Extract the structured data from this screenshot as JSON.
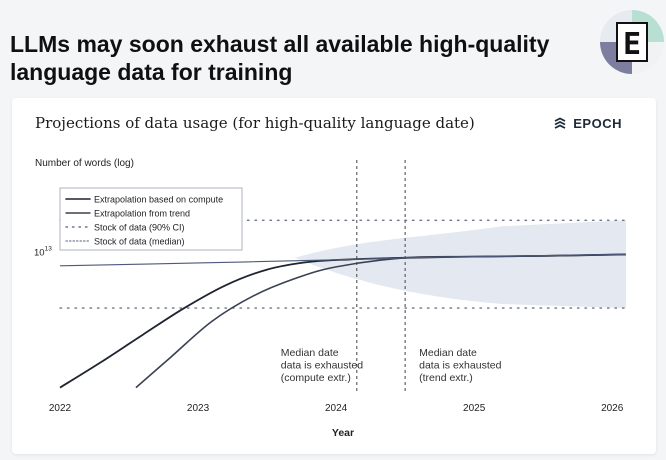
{
  "page": {
    "headline": "LLMs may soon exhaust all available high-quality language data for training"
  },
  "logo": {
    "icon": "epoch-e-badge-icon",
    "letter": "E"
  },
  "card": {
    "title": "Projections of data usage (for high-quality language date)",
    "brand": "EPOCH",
    "brand_icon": "epoch-logo-icon"
  },
  "chart_data": {
    "type": "line",
    "title": "Projections of data usage (for high-quality language date)",
    "xlabel": "Year",
    "ylabel": "Number of words (log)",
    "xlim": [
      2022,
      2026.1
    ],
    "yscale": "log",
    "ylim": [
      140000000000.0,
      100000000000000.0
    ],
    "x_ticks": [
      "2022",
      "2023",
      "2024",
      "2025",
      "2026"
    ],
    "y_ticks": [
      {
        "value": 10000000000000.0,
        "label": "10",
        "exp": "13"
      }
    ],
    "grid": false,
    "legend_position": "top-left",
    "legend": [
      "Extrapolation based on compute",
      "Extrapolation from trend",
      "Stock of data (90% CI)",
      "Stock of data (median)"
    ],
    "series": [
      {
        "name": "Extrapolation based on compute",
        "style": "solid-dark",
        "x": [
          2022.0,
          2022.3,
          2022.6,
          2022.9,
          2023.2,
          2023.5,
          2023.8,
          2024.1,
          2024.5,
          2025.0,
          2025.5,
          2026.1
        ],
        "y": [
          160000000000.0,
          350000000000.0,
          800000000000.0,
          1800000000000.0,
          3600000000000.0,
          5800000000000.0,
          7300000000000.0,
          7900000000000.0,
          8300000000000.0,
          8600000000000.0,
          8800000000000.0,
          9200000000000.0
        ]
      },
      {
        "name": "Extrapolation from trend",
        "style": "solid-medium",
        "x": [
          2022.55,
          2022.8,
          2023.1,
          2023.4,
          2023.7,
          2024.0,
          2024.5,
          2025.0,
          2025.5,
          2026.1
        ],
        "y": [
          160000000000.0,
          400000000000.0,
          1200000000000.0,
          2600000000000.0,
          4400000000000.0,
          6300000000000.0,
          8300000000000.0,
          8600000000000.0,
          8800000000000.0,
          9200000000000.0
        ]
      },
      {
        "name": "Stock of data (median)",
        "style": "thin",
        "x": [
          2022.0,
          2023.0,
          2024.0,
          2024.5,
          2025.0,
          2026.1
        ],
        "y": [
          6500000000000.0,
          7100000000000.0,
          7800000000000.0,
          8300000000000.0,
          8600000000000.0,
          9200000000000.0
        ]
      }
    ],
    "ci_band": {
      "name": "Stock of data (90% CI)",
      "x": [
        2022.0,
        2024.5,
        2026.1
      ],
      "upper": [
        26000000000000.0,
        26000000000000.0,
        26000000000000.0
      ],
      "lower": [
        1800000000000.0,
        1800000000000.0,
        1800000000000.0
      ]
    },
    "vlines": [
      {
        "x": 2024.15,
        "label_lines": [
          "Median date",
          "data is exhausted",
          "(compute extr.)"
        ]
      },
      {
        "x": 2024.5,
        "label_lines": [
          "Median date",
          "data is exhausted",
          "(trend extr.)"
        ]
      }
    ],
    "colors": {
      "compute": "#1f2430",
      "trend": "#3b4152",
      "median": "#4b5a7a",
      "ci_fill": "#dfe4ef",
      "ci_dots": "#6c7488",
      "vline": "#444444",
      "label": "#333333"
    }
  }
}
